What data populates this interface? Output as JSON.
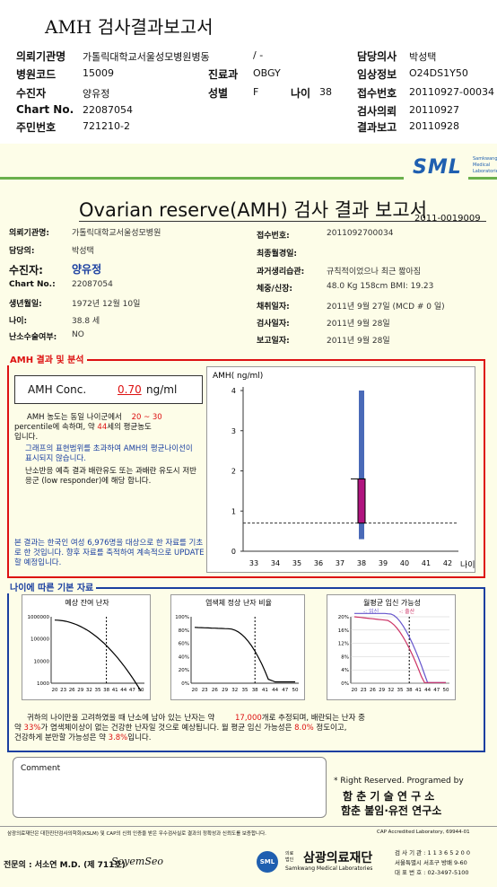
{
  "top": {
    "title": "AMH 검사결과보고서",
    "rows": [
      {
        "l1": "의뢰기관명",
        "v1": "가톨릭대학교서울성모병원병동",
        "v1b": "/ -",
        "l3": "담당의사",
        "v3": "박성택"
      },
      {
        "l1": "병원코드",
        "v1": "15009",
        "l2": "진료과",
        "v2": "OBGY",
        "l3": "임상정보",
        "v3": "O24DS1Y50"
      },
      {
        "l1": "수진자",
        "v1": "양유정",
        "l2": "성별",
        "v2": "F",
        "l2b": "나이",
        "v2b": "38",
        "l3": "접수번호",
        "v3": "20110927-00034"
      },
      {
        "l1": "Chart No.",
        "v1": "22087054",
        "l3": "검사의뢰",
        "v3": "20110927"
      },
      {
        "l1": "주민번호",
        "v1": "721210-2",
        "l3": "결과보고",
        "v3": "20110928"
      }
    ]
  },
  "logo": {
    "text": "SML",
    "sub": "Samkwang Medical Laboratories"
  },
  "report": {
    "title": "Ovarian reserve(AMH) 검사 결과 보고서",
    "doc_no": "2011-0019009"
  },
  "info_left": [
    {
      "label": "의뢰기관명:",
      "value": "가톨릭대학교서울성모병원"
    },
    {
      "label": "담당의:",
      "value": "박성택"
    },
    {
      "label": "수진자:",
      "value": "양유정"
    },
    {
      "label": "Chart No.:",
      "value": "22087054"
    },
    {
      "label": "생년월일:",
      "value": "1972년 12월 10일"
    },
    {
      "label": "나이:",
      "value": "38.8 세"
    },
    {
      "label": "난소수술여부:",
      "value": "NO"
    }
  ],
  "info_right": [
    {
      "label": "접수번호:",
      "value": "2011092700034"
    },
    {
      "label": "최종월경일:",
      "value": ""
    },
    {
      "label": "과거생리습관:",
      "value": "규칙적이었으나 최근 짧아짐"
    },
    {
      "label": "체중/신장:",
      "value": "48.0 Kg    158cm    BMI: 19.23"
    },
    {
      "label": "채취일자:",
      "value": "2011년 9월 27일   (MCD # 0 일)"
    },
    {
      "label": "검사일자:",
      "value": "2011년 9월 28일"
    },
    {
      "label": "보고일자:",
      "value": "2011년 9월 28일"
    }
  ],
  "amh": {
    "section_title": "AMH 결과 및 분석",
    "conc_label": "AMH Conc.",
    "conc_value": "0.70",
    "conc_unit": "ng/ml",
    "p1_a": "AMH 농도는 동일 나이군에서",
    "p1_pct": "20 ~ 30",
    "p1_b": "percentile에 속하며, 약",
    "p1_age": "44",
    "p1_c": "세의 평균농도",
    "p1_d": "입니다.",
    "p2": "그래프의 표현범위를 초과하여 AMH의 평균나이선이 표시되지 않습니다.",
    "p3": "난소반응 예측 결과 배란유도 또는 과배란 유도시 저반응군 (low responder)에 해당 합니다.",
    "p4": "본 결과는 한국인 여성 6,976명을 대상으로 한 자료를 기초로 한 것입니다. 향후 자료를 축적하여 계속적으로 UPDATE할 예정입니다."
  },
  "chart_data": [
    {
      "type": "bar",
      "ylabel": "AMH( ng/ml)",
      "xlabel": "나이",
      "categories": [
        "33",
        "34",
        "35",
        "36",
        "37",
        "38",
        "39",
        "40",
        "41",
        "42"
      ],
      "ylim": [
        0,
        4
      ],
      "yticks": [
        "0",
        "1",
        "2",
        "3",
        "4"
      ],
      "range_bar": {
        "x": "38",
        "low": 0.3,
        "high": 4.0
      },
      "box": {
        "x": "38",
        "low": 0.7,
        "high": 1.8
      },
      "reference_line": 0.7
    },
    {
      "type": "line",
      "title": "예상 잔여 난자",
      "scale": "log",
      "yticks": [
        "1000000",
        "100000",
        "10000",
        "1000"
      ],
      "xticks": [
        "20",
        "23",
        "26",
        "29",
        "32",
        "35",
        "38",
        "41",
        "44",
        "47",
        "50"
      ],
      "marker_age": 38
    },
    {
      "type": "line",
      "title": "염색체 정상 난자 비율",
      "yticks": [
        "100%",
        "80%",
        "60%",
        "40%",
        "20%",
        "0%"
      ],
      "xticks": [
        "20",
        "23",
        "26",
        "29",
        "32",
        "35",
        "38",
        "41",
        "44",
        "47",
        "50"
      ],
      "marker_age": 38
    },
    {
      "type": "line",
      "title": "월평균 임신 가능성",
      "legend": [
        {
          "name": "-: 임신",
          "color": "#6655cc"
        },
        {
          "name": "-: 출산",
          "color": "#cc3366"
        }
      ],
      "yticks": [
        "20%",
        "16%",
        "12%",
        "8%",
        "4%",
        "0%"
      ],
      "xticks": [
        "20",
        "23",
        "26",
        "29",
        "32",
        "35",
        "38",
        "41",
        "44",
        "47",
        "50"
      ],
      "marker_age": 38
    }
  ],
  "basic": {
    "section_title": "나이에 따른 기본 자료",
    "s1_a": "귀하의 나이만을 고려하였을 때 난소에 남아 있는 난자는 약",
    "s1_eggs": "17,000",
    "s1_b": "개로 추정되며, 배란되는 난자 중",
    "s2_a": "약",
    "s2_pct": "33%",
    "s2_b": "가 염색체이상이 없는 건강한 난자일 것으로 예상됩니다. 월 평균 임신 가능성은",
    "s2_preg": "8.0%",
    "s2_c": "정도이고,",
    "s3_a": "건강하게 분만할 가능성은 약",
    "s3_birth": "3.8%",
    "s3_b": "입니다."
  },
  "comment": {
    "label": "Comment"
  },
  "rights": {
    "line1": "* Right Reserved. Programed by",
    "line2": "함 춘  기 술  연 구 소",
    "line3": "함춘 불임·유전 연구소"
  },
  "footer": {
    "disclaimer": "삼광의료재단은 대한진단검사의학회(KSLM) 및 CAP의 신뢰 인증을 받은 우수검사실로 결과의 정확성과 신뢰도를 보증합니다.",
    "cap": "CAP Accredited Laboratory, 69944-01",
    "specialist": "전문의 : 서소연 M.D. (제 711호)",
    "signature": "SoyemSeo",
    "org_pre": "의료 법인",
    "org": "삼광의료재단",
    "org_en": "Samkwang Medical Laboratories",
    "addr1": "검 사 기 관 : 1 1 3 6 5 2 0 0",
    "addr2": "서울특별시 서초구 방배 9-60",
    "addr3": "대 표 번 호 : 02-3497-5100"
  }
}
